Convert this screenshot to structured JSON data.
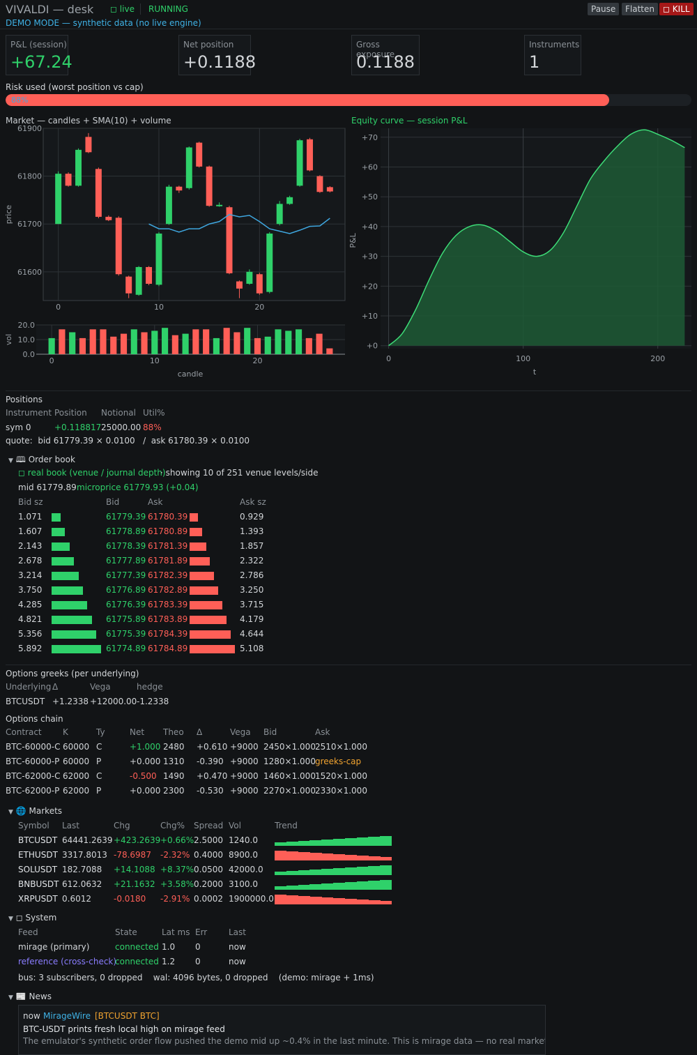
{
  "header": {
    "app_title": "VIVALDI — desk",
    "live_label": "live",
    "state": "RUNNING",
    "demo_notice": "DEMO MODE — synthetic data (no live engine)",
    "buttons": {
      "pause": "Pause",
      "flatten": "Flatten",
      "kill": "KILL"
    }
  },
  "metrics": [
    {
      "label": "P&L (session)",
      "value": "+67.24"
    },
    {
      "label": "Net position",
      "value": "+0.1188"
    },
    {
      "label": "Gross exposure",
      "value": "0.1188"
    },
    {
      "label": "Instruments",
      "value": "1"
    }
  ],
  "risk": {
    "label": "Risk used (worst position vs cap)",
    "percent_text": "88%",
    "fraction": 0.88
  },
  "market_chart": {
    "title": "Market — candles + SMA(10) + volume",
    "ylabel": "price",
    "yticks": [
      "61900",
      "61800",
      "61700",
      "61600"
    ],
    "xticks": [
      "0",
      "10",
      "20"
    ],
    "vol_label": "vol",
    "vol_ticks": [
      "20.0",
      "10.0",
      "0.0"
    ],
    "xlabel": "candle"
  },
  "chart_data": [
    {
      "type": "candlestick",
      "title": "Market — candles + SMA(10) + volume",
      "xlabel": "candle",
      "ylabel": "price",
      "ylim": [
        61540,
        61900
      ],
      "xlim": [
        -1.5,
        28.5
      ],
      "candles": [
        {
          "x": 0,
          "o": 61700,
          "c": 61805,
          "h": 61810,
          "l": 61700
        },
        {
          "x": 1,
          "o": 61805,
          "c": 61780,
          "h": 61808,
          "l": 61778
        },
        {
          "x": 2,
          "o": 61780,
          "c": 61855,
          "h": 61858,
          "l": 61778
        },
        {
          "x": 3,
          "o": 61882,
          "c": 61850,
          "h": 61890,
          "l": 61848
        },
        {
          "x": 4,
          "o": 61815,
          "c": 61715,
          "h": 61818,
          "l": 61712
        },
        {
          "x": 5,
          "o": 61715,
          "c": 61708,
          "h": 61718,
          "l": 61706
        },
        {
          "x": 6,
          "o": 61713,
          "c": 61595,
          "h": 61716,
          "l": 61592
        },
        {
          "x": 7,
          "o": 61590,
          "c": 61555,
          "h": 61592,
          "l": 61545
        },
        {
          "x": 8,
          "o": 61552,
          "c": 61610,
          "h": 61612,
          "l": 61550
        },
        {
          "x": 9,
          "o": 61610,
          "c": 61575,
          "h": 61612,
          "l": 61572
        },
        {
          "x": 10,
          "o": 61573,
          "c": 61680,
          "h": 61683,
          "l": 61570
        },
        {
          "x": 11,
          "o": 61700,
          "c": 61778,
          "h": 61782,
          "l": 61698
        },
        {
          "x": 12,
          "o": 61778,
          "c": 61770,
          "h": 61780,
          "l": 61765
        },
        {
          "x": 13,
          "o": 61775,
          "c": 61860,
          "h": 61862,
          "l": 61772
        },
        {
          "x": 14,
          "o": 61870,
          "c": 61820,
          "h": 61872,
          "l": 61818
        },
        {
          "x": 15,
          "o": 61820,
          "c": 61738,
          "h": 61822,
          "l": 61736
        },
        {
          "x": 16,
          "o": 61740,
          "c": 61740,
          "h": 61745,
          "l": 61736
        },
        {
          "x": 17,
          "o": 61735,
          "c": 61597,
          "h": 61738,
          "l": 61595
        },
        {
          "x": 18,
          "o": 61580,
          "c": 61565,
          "h": 61582,
          "l": 61545
        },
        {
          "x": 19,
          "o": 61575,
          "c": 61600,
          "h": 61605,
          "l": 61573
        },
        {
          "x": 20,
          "o": 61595,
          "c": 61555,
          "h": 61598,
          "l": 61552
        },
        {
          "x": 21,
          "o": 61558,
          "c": 61680,
          "h": 61683,
          "l": 61555
        },
        {
          "x": 22,
          "o": 61700,
          "c": 61742,
          "h": 61748,
          "l": 61697
        },
        {
          "x": 23,
          "o": 61742,
          "c": 61756,
          "h": 61759,
          "l": 61740
        },
        {
          "x": 24,
          "o": 61780,
          "c": 61875,
          "h": 61878,
          "l": 61778
        },
        {
          "x": 25,
          "o": 61877,
          "c": 61812,
          "h": 61880,
          "l": 61810
        },
        {
          "x": 26,
          "o": 61800,
          "c": 61767,
          "h": 61802,
          "l": 61765
        },
        {
          "x": 27,
          "o": 61777,
          "c": 61768,
          "h": 61779,
          "l": 61766
        }
      ],
      "sma": [
        {
          "x": 9,
          "y": 61700
        },
        {
          "x": 10,
          "y": 61690
        },
        {
          "x": 11,
          "y": 61690
        },
        {
          "x": 12,
          "y": 61683
        },
        {
          "x": 13,
          "y": 61690
        },
        {
          "x": 14,
          "y": 61690
        },
        {
          "x": 15,
          "y": 61700
        },
        {
          "x": 16,
          "y": 61705
        },
        {
          "x": 17,
          "y": 61720
        },
        {
          "x": 18,
          "y": 61715
        },
        {
          "x": 19,
          "y": 61718
        },
        {
          "x": 20,
          "y": 61705
        },
        {
          "x": 21,
          "y": 61690
        },
        {
          "x": 22,
          "y": 61685
        },
        {
          "x": 23,
          "y": 61680
        },
        {
          "x": 24,
          "y": 61687
        },
        {
          "x": 25,
          "y": 61695
        },
        {
          "x": 26,
          "y": 61696
        },
        {
          "x": 27,
          "y": 61712
        }
      ],
      "volume": {
        "ylim": [
          0,
          20
        ],
        "values": [
          11,
          17,
          15,
          11,
          17,
          17,
          12,
          14,
          17,
          15,
          16,
          18,
          13,
          14,
          17,
          17,
          11,
          18,
          15,
          18,
          11,
          12,
          17,
          16,
          17,
          11,
          14,
          4
        ]
      }
    },
    {
      "type": "area",
      "title": "Equity curve — session P&L",
      "xlabel": "t",
      "ylabel": "P&L",
      "xlim": [
        -6,
        225
      ],
      "ylim": [
        -1,
        73
      ],
      "xticks": [
        "0",
        "100",
        "200"
      ],
      "yticks": [
        "+70",
        "+60",
        "+50",
        "+40",
        "+30",
        "+20",
        "+10",
        "+0"
      ],
      "x": [
        0,
        10,
        20,
        30,
        40,
        50,
        60,
        70,
        80,
        90,
        100,
        110,
        120,
        130,
        140,
        150,
        160,
        170,
        180,
        190,
        200,
        210,
        220
      ],
      "values": [
        0,
        4,
        12,
        22,
        31,
        37,
        40,
        40.5,
        38.5,
        35,
        31.5,
        30,
        32,
        38,
        47,
        56,
        62,
        67,
        71,
        72.5,
        71,
        69,
        66.5
      ]
    }
  ],
  "equity_chart": {
    "title": "Equity curve — session P&L",
    "ylabel": "P&L",
    "xlabel": "t",
    "yticks": [
      "+70",
      "+60",
      "+50",
      "+40",
      "+30",
      "+20",
      "+10",
      "+0"
    ],
    "xticks": [
      "0",
      "100",
      "200"
    ]
  },
  "positions": {
    "title": "Positions",
    "headers": [
      "Instrument",
      "Position",
      "Notional",
      "Util%"
    ],
    "row": {
      "instrument": "sym 0",
      "position": "+0.118817",
      "notional": "25000.00",
      "util": "88%"
    },
    "quote": "quote:  bid 61779.39 × 0.0100   /  ask 61780.39 × 0.0100"
  },
  "order_book": {
    "title": "Order book",
    "source_label": "real book (venue / journal depth)",
    "showing": "· showing 10 of 251 venue levels/side",
    "mid": "mid 61779.89",
    "microprice": "microprice 61779.93 (+0.04)",
    "headers": {
      "bid_sz": "Bid sz",
      "bid": "Bid",
      "ask": "Ask",
      "ask_sz": "Ask sz"
    },
    "rows": [
      {
        "bid_sz": "1.071",
        "bid": "61779.39",
        "ask": "61780.39",
        "ask_sz": "0.929"
      },
      {
        "bid_sz": "1.607",
        "bid": "61778.89",
        "ask": "61780.89",
        "ask_sz": "1.393"
      },
      {
        "bid_sz": "2.143",
        "bid": "61778.39",
        "ask": "61781.39",
        "ask_sz": "1.857"
      },
      {
        "bid_sz": "2.678",
        "bid": "61777.89",
        "ask": "61781.89",
        "ask_sz": "2.322"
      },
      {
        "bid_sz": "3.214",
        "bid": "61777.39",
        "ask": "61782.39",
        "ask_sz": "2.786"
      },
      {
        "bid_sz": "3.750",
        "bid": "61776.89",
        "ask": "61782.89",
        "ask_sz": "3.250"
      },
      {
        "bid_sz": "4.285",
        "bid": "61776.39",
        "ask": "61783.39",
        "ask_sz": "3.715"
      },
      {
        "bid_sz": "4.821",
        "bid": "61775.89",
        "ask": "61783.89",
        "ask_sz": "4.179"
      },
      {
        "bid_sz": "5.356",
        "bid": "61775.39",
        "ask": "61784.39",
        "ask_sz": "4.644"
      },
      {
        "bid_sz": "5.892",
        "bid": "61774.89",
        "ask": "61784.89",
        "ask_sz": "5.108"
      }
    ]
  },
  "greeks": {
    "title": "Options greeks (per underlying)",
    "headers": [
      "Underlying",
      "Δ",
      "Vega",
      "hedge"
    ],
    "row": {
      "underlying": "BTCUSDT",
      "delta": "+1.2338",
      "vega": "+12000.00",
      "hedge": "-1.2338"
    }
  },
  "options_chain": {
    "title": "Options chain",
    "headers": [
      "Contract",
      "K",
      "Ty",
      "Net",
      "Theo",
      "Δ",
      "Vega",
      "Bid",
      "Ask"
    ],
    "rows": [
      {
        "contract": "BTC-60000-C",
        "k": "60000",
        "ty": "C",
        "net": "+1.000",
        "theo": "2480",
        "delta": "+0.610",
        "vega": "+9000",
        "bid": "2450×1.000",
        "ask": "2510×1.000"
      },
      {
        "contract": "BTC-60000-P",
        "k": "60000",
        "ty": "P",
        "net": "+0.000",
        "theo": "1310",
        "delta": "-0.390",
        "vega": "+9000",
        "bid": "1280×1.000",
        "ask": "greeks-cap"
      },
      {
        "contract": "BTC-62000-C",
        "k": "62000",
        "ty": "C",
        "net": "-0.500",
        "theo": "1490",
        "delta": "+0.470",
        "vega": "+9000",
        "bid": "1460×1.000",
        "ask": "1520×1.000"
      },
      {
        "contract": "BTC-62000-P",
        "k": "62000",
        "ty": "P",
        "net": "+0.000",
        "theo": "2300",
        "delta": "-0.530",
        "vega": "+9000",
        "bid": "2270×1.000",
        "ask": "2330×1.000"
      }
    ]
  },
  "markets": {
    "title": "Markets",
    "headers": [
      "Symbol",
      "Last",
      "Chg",
      "Chg%",
      "Spread",
      "Vol",
      "Trend"
    ],
    "rows": [
      {
        "symbol": "BTCUSDT",
        "last": "64441.2639",
        "chg": "+423.2639",
        "chg_pct": "+0.66%",
        "spread": "2.5000",
        "vol": "1240.0",
        "up": true
      },
      {
        "symbol": "ETHUSDT",
        "last": "3317.8013",
        "chg": "-78.6987",
        "chg_pct": "-2.32%",
        "spread": "0.4000",
        "vol": "8900.0",
        "up": false
      },
      {
        "symbol": "SOLUSDT",
        "last": "182.7088",
        "chg": "+14.1088",
        "chg_pct": "+8.37%",
        "spread": "0.0500",
        "vol": "42000.0",
        "up": true
      },
      {
        "symbol": "BNBUSDT",
        "last": "612.0632",
        "chg": "+21.1632",
        "chg_pct": "+3.58%",
        "spread": "0.2000",
        "vol": "3100.0",
        "up": true
      },
      {
        "symbol": "XRPUSDT",
        "last": "0.6012",
        "chg": "-0.0180",
        "chg_pct": "-2.91%",
        "spread": "0.0002",
        "vol": "1900000.0",
        "up": false
      }
    ]
  },
  "system": {
    "title": "System",
    "headers": [
      "Feed",
      "State",
      "Lat ms",
      "Err",
      "Last"
    ],
    "rows": [
      {
        "feed": "mirage (primary)",
        "state": "connected",
        "lat": "1.0",
        "err": "0",
        "last": "now"
      },
      {
        "feed": "reference (cross-check)",
        "state": "connected",
        "lat": "1.2",
        "err": "0",
        "last": "now"
      }
    ],
    "footer": "bus: 3 subscribers, 0 dropped    wal: 4096 bytes, 0 dropped    (demo: mirage + 1ms)"
  },
  "news": {
    "title": "News",
    "time": "now",
    "source": "MirageWire",
    "tags": "[BTCUSDT BTC]",
    "headline": "BTC-USDT prints fresh local high on mirage feed",
    "body": "The emulator's synthetic order flow pushed the demo mid up ~0.4% in the last minute. This is mirage data — no real market is implied."
  },
  "colors": {
    "up": "#2fd16a",
    "down": "#ff5f57",
    "sma": "#3fa7e0",
    "accent": "#3fb2e6",
    "kill": "#b81c1c"
  }
}
